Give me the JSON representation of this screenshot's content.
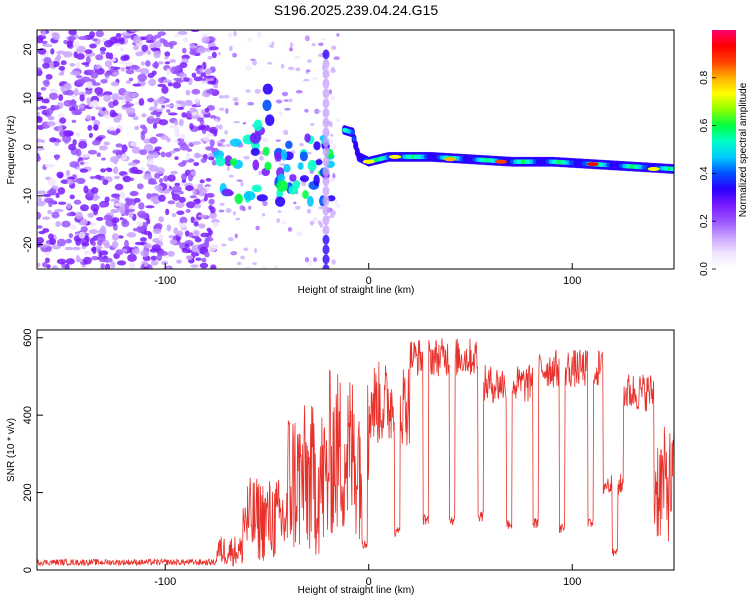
{
  "title": "S196.2025.239.04.24.G15",
  "chart_data": [
    {
      "type": "heatmap",
      "name": "spectrogram",
      "xlabel": "Height of straight line (km)",
      "ylabel": "Frequency (Hz)",
      "xlim": [
        -163,
        150
      ],
      "ylim": [
        -25,
        24
      ],
      "xticks": [
        -100,
        0,
        100
      ],
      "yticks": [
        -20,
        -10,
        0,
        10,
        20
      ],
      "colorbar": {
        "label": "Normalized spectral amplitude",
        "range": [
          0,
          1
        ],
        "ticks": [
          0.0,
          0.2,
          0.4,
          0.6,
          0.8
        ],
        "tick_labels": [
          "0.0",
          "0.2",
          "0.4",
          "0.6",
          "0.8"
        ],
        "colormap": [
          "#ffffff",
          "#f0e4ff",
          "#c9a3ff",
          "#9a55ff",
          "#7a1cff",
          "#2a00ff",
          "#0050ff",
          "#00c8ff",
          "#00ffc8",
          "#00ff40",
          "#8cff00",
          "#ffff00",
          "#ffb000",
          "#ff4000",
          "#ff0000",
          "#ff0070"
        ]
      },
      "ridge": [
        {
          "x": -12,
          "y": 3.5
        },
        {
          "x": -8,
          "y": 3
        },
        {
          "x": -5,
          "y": -2
        },
        {
          "x": 0,
          "y": -3
        },
        {
          "x": 10,
          "y": -2
        },
        {
          "x": 30,
          "y": -2
        },
        {
          "x": 50,
          "y": -2.5
        },
        {
          "x": 70,
          "y": -3
        },
        {
          "x": 90,
          "y": -3
        },
        {
          "x": 110,
          "y": -3.5
        },
        {
          "x": 130,
          "y": -4
        },
        {
          "x": 150,
          "y": -4.5
        }
      ],
      "hot_spots": [
        {
          "x": 0,
          "y": -3,
          "v": 0.7
        },
        {
          "x": 13,
          "y": -2,
          "v": 0.75
        },
        {
          "x": 40,
          "y": -2.5,
          "v": 0.8
        },
        {
          "x": 65,
          "y": -3,
          "v": 0.85
        },
        {
          "x": 110,
          "y": -3.5,
          "v": 0.9
        },
        {
          "x": 140,
          "y": -4.5,
          "v": 0.7
        }
      ]
    },
    {
      "type": "line",
      "name": "snr",
      "xlabel": "Height of straight line (km)",
      "ylabel": "SNR (10 * v/v)",
      "xlim": [
        -163,
        150
      ],
      "ylim": [
        0,
        620
      ],
      "xticks": [
        -100,
        0,
        100
      ],
      "yticks": [
        0,
        200,
        400,
        600
      ],
      "color": "#e8302a",
      "segments": [
        {
          "x0": -163,
          "x1": -75,
          "level": 20,
          "noise": 8
        },
        {
          "x0": -75,
          "x1": -62,
          "level": 50,
          "noise": 40
        },
        {
          "x0": -62,
          "x1": -40,
          "level": 130,
          "noise": 110
        },
        {
          "x0": -40,
          "x1": -20,
          "level": 230,
          "noise": 200
        },
        {
          "x0": -20,
          "x1": 0,
          "level": 300,
          "noise": 220
        },
        {
          "x0": 0,
          "x1": 20,
          "level": 430,
          "noise": 110
        },
        {
          "x0": 20,
          "x1": 55,
          "level": 550,
          "noise": 50
        },
        {
          "x0": 55,
          "x1": 80,
          "level": 480,
          "noise": 50
        },
        {
          "x0": 80,
          "x1": 115,
          "level": 520,
          "noise": 50
        },
        {
          "x0": 115,
          "x1": 125,
          "level": 220,
          "noise": 30
        },
        {
          "x0": 125,
          "x1": 140,
          "level": 460,
          "noise": 50
        },
        {
          "x0": 140,
          "x1": 150,
          "level": 220,
          "noise": 150
        }
      ],
      "dips": [
        {
          "x": -2,
          "w": 2.5,
          "level": 70
        },
        {
          "x": 14,
          "w": 2.5,
          "level": 100
        },
        {
          "x": 28,
          "w": 2.5,
          "level": 130
        },
        {
          "x": 41,
          "w": 2.5,
          "level": 130
        },
        {
          "x": 55,
          "w": 2.5,
          "level": 140
        },
        {
          "x": 69,
          "w": 2.5,
          "level": 120
        },
        {
          "x": 82,
          "w": 2.5,
          "level": 120
        },
        {
          "x": 95,
          "w": 2.5,
          "level": 110
        },
        {
          "x": 109,
          "w": 2.5,
          "level": 120
        },
        {
          "x": 121,
          "w": 2.5,
          "level": 50
        }
      ]
    }
  ]
}
